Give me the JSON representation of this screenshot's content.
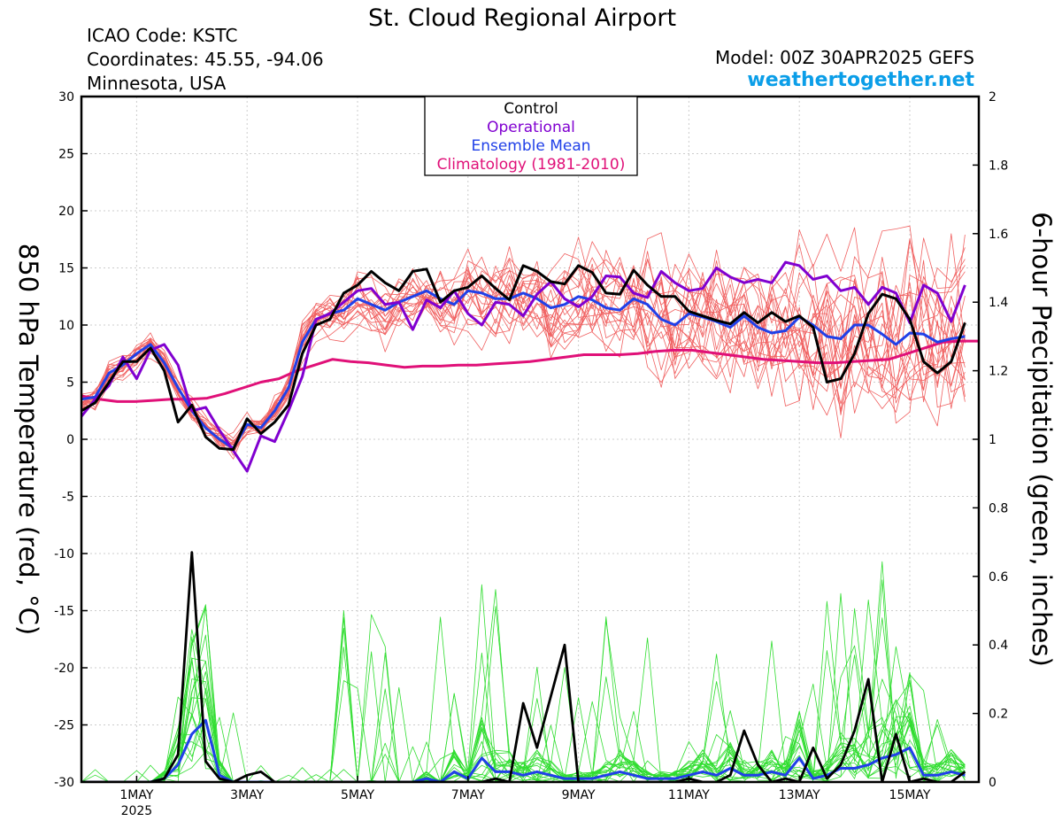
{
  "header": {
    "title": "St. Cloud Regional Airport",
    "icao": "ICAO Code: KSTC",
    "coordinates": "Coordinates: 45.55, -94.06",
    "location": "Minnesota, USA",
    "model": "Model: 00Z 30APR2025 GEFS",
    "site": "weathertogether.net"
  },
  "colors": {
    "control": "#000000",
    "operational": "#8000d0",
    "ensemble_mean": "#2040e8",
    "climatology": "#e01078",
    "members_temp": "#f06060",
    "members_precip": "#30dd30",
    "site": "#0b9ee8"
  },
  "chart_data": {
    "type": "line",
    "xlabel": "",
    "ylabel": "850 hPa Temperature (red, °C)",
    "y2label": "6-hour Precipitation (green, inches)",
    "ylim": [
      -30,
      30
    ],
    "y2lim": [
      0,
      2
    ],
    "yticks": [
      "30",
      "25",
      "20",
      "15",
      "10",
      "5",
      "0",
      "-5",
      "-10",
      "-15",
      "-20",
      "-25",
      "-30"
    ],
    "y2ticks": [
      "2",
      "1.8",
      "1.6",
      "1.4",
      "1.2",
      "1",
      "0.8",
      "0.6",
      "0.4",
      "0.2",
      "0"
    ],
    "xlim": [
      0,
      65
    ],
    "xticks": [
      {
        "x": 4,
        "label": "1MAY",
        "sub": "2025"
      },
      {
        "x": 12,
        "label": "3MAY",
        "sub": ""
      },
      {
        "x": 20,
        "label": "5MAY",
        "sub": ""
      },
      {
        "x": 28,
        "label": "7MAY",
        "sub": ""
      },
      {
        "x": 36,
        "label": "9MAY",
        "sub": ""
      },
      {
        "x": 44,
        "label": "11MAY",
        "sub": ""
      },
      {
        "x": 52,
        "label": "13MAY",
        "sub": ""
      },
      {
        "x": 60,
        "label": "15MAY",
        "sub": ""
      }
    ],
    "legend": {
      "placement": "top-center",
      "entries": [
        {
          "key": "control",
          "label": "Control"
        },
        {
          "key": "operational",
          "label": "Operational"
        },
        {
          "key": "ensemble_mean",
          "label": "Ensemble Mean"
        },
        {
          "key": "climatology",
          "label": "Climatology (1981-2010)"
        }
      ]
    },
    "temperature": {
      "control": [
        2.5,
        3.2,
        5,
        6.8,
        6.8,
        8,
        6,
        1.5,
        3,
        0.2,
        -0.8,
        -0.9,
        1.8,
        0.5,
        1.5,
        3,
        7.5,
        10,
        10.5,
        12.8,
        13.5,
        14.7,
        13.7,
        13,
        14.7,
        14.9,
        12,
        13,
        13.3,
        14.3,
        13.2,
        12.2,
        15.2,
        14.7,
        13.8,
        13.6,
        15.2,
        14.6,
        12.8,
        12.7,
        14.8,
        13.5,
        12.5,
        12.5,
        11.2,
        10.8,
        10.4,
        10.1,
        11.1,
        10.2,
        11.1,
        10.3,
        10.8,
        9.8,
        5,
        5.3,
        7.5,
        11,
        12.7,
        12.3,
        10.5,
        6.8,
        5.8,
        6.8,
        10.2
      ],
      "operational": [
        2,
        3.5,
        4.7,
        7.2,
        5.3,
        7.8,
        8.3,
        6.5,
        2.5,
        2.8,
        0.8,
        -1,
        -2.8,
        0.3,
        -0.2,
        2.5,
        5.5,
        10.5,
        11,
        12,
        13,
        13.2,
        11.8,
        12,
        9.6,
        12.2,
        11.5,
        13,
        11,
        10,
        12,
        11.8,
        10.8,
        12.7,
        13.8,
        12.3,
        11.6,
        12.5,
        14.3,
        14.2,
        12.8,
        12.4,
        14.7,
        13.7,
        13,
        13.2,
        15,
        14.2,
        13.7,
        14,
        13.7,
        15.5,
        15.2,
        14,
        14.3,
        13,
        13.3,
        11.8,
        13.3,
        12.8,
        10.2,
        13.5,
        12.8,
        10.3,
        13.5
      ],
      "ensemble_mean": [
        3.5,
        3.7,
        5.8,
        6.5,
        7.5,
        8.3,
        6.7,
        4.5,
        2.5,
        1,
        0,
        -0.8,
        1.3,
        1,
        2.5,
        4.5,
        8.5,
        10.5,
        11,
        11.3,
        12.3,
        11.8,
        11.3,
        12,
        12.5,
        13,
        12.3,
        11.8,
        13,
        12.8,
        12.3,
        12.3,
        12.8,
        12.3,
        11.5,
        11.8,
        12.5,
        12.2,
        11.5,
        11.3,
        12.3,
        11.8,
        10.5,
        10,
        11,
        10.7,
        10.3,
        9.8,
        10.8,
        9.8,
        9.3,
        9.5,
        10.7,
        10,
        9,
        8.8,
        10,
        10,
        9.2,
        8.3,
        9.3,
        9.2,
        8.5,
        8.8,
        9
      ],
      "climatology": [
        3.8,
        3.5,
        3.3,
        3.3,
        3.4,
        3.5,
        3.5,
        3.6,
        4,
        4.5,
        5,
        5.3,
        6,
        6.5,
        7,
        6.8,
        6.7,
        6.5,
        6.3,
        6.4,
        6.4,
        6.5,
        6.5,
        6.6,
        6.7,
        6.8,
        7,
        7.2,
        7.4,
        7.4,
        7.4,
        7.5,
        7.7,
        7.8,
        7.8,
        7.6,
        7.4,
        7.2,
        7,
        6.9,
        6.8,
        6.7,
        6.7,
        6.8,
        6.9,
        7,
        7.5,
        8,
        8.5,
        8.6,
        8.6
      ]
    },
    "precipitation": {
      "control": [
        0,
        0,
        0,
        0,
        0,
        0,
        0.01,
        0.08,
        0.67,
        0.06,
        0.01,
        0,
        0.02,
        0.03,
        0,
        0,
        0,
        0,
        0,
        0,
        0,
        0,
        0,
        0,
        0,
        0,
        0,
        0,
        0,
        0,
        0.01,
        0,
        0.23,
        0.1,
        0.25,
        0.4,
        0,
        0,
        0,
        0,
        0,
        0,
        0,
        0,
        0.01,
        0,
        0,
        0.02,
        0.15,
        0.05,
        0,
        0.01,
        0,
        0.1,
        0.01,
        0.05,
        0.15,
        0.3,
        0,
        0.14,
        0,
        0.01,
        0,
        0,
        0.03
      ],
      "ensemble_mean": [
        0,
        0,
        0,
        0,
        0,
        0,
        0.01,
        0.05,
        0.14,
        0.18,
        0.02,
        0,
        0,
        0,
        0,
        0,
        0,
        0,
        0,
        0,
        0,
        0,
        0,
        0,
        0,
        0.01,
        0,
        0.03,
        0.01,
        0.07,
        0.03,
        0.03,
        0.02,
        0.03,
        0.02,
        0.01,
        0.01,
        0.01,
        0.02,
        0.03,
        0.02,
        0.01,
        0.01,
        0.01,
        0.02,
        0.03,
        0.02,
        0.04,
        0.02,
        0.02,
        0.03,
        0.02,
        0.07,
        0.01,
        0.02,
        0.04,
        0.04,
        0.05,
        0.07,
        0.08,
        0.1,
        0.02,
        0.02,
        0.03,
        0.02
      ]
    }
  }
}
